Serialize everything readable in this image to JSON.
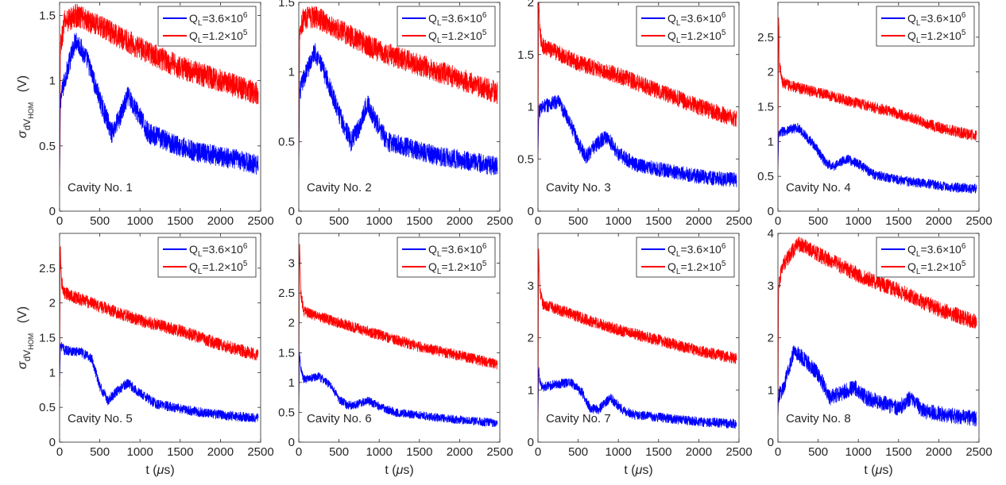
{
  "figure": {
    "ylabel": {
      "base": "σ",
      "sub1": "dV",
      "sub2": "HOM",
      "unit": "(V)"
    },
    "xlabel": {
      "prefix": "t (",
      "mu": "μ",
      "suffix": "s)"
    }
  },
  "legend": {
    "entries": [
      {
        "q": "Q",
        "sub": "L",
        "eq": "=3.6×10",
        "sup": "6",
        "color": "#0000ff"
      },
      {
        "q": "Q",
        "sub": "L",
        "eq": "=1.2×10",
        "sup": "5",
        "color": "#ff0000"
      }
    ]
  },
  "colors": {
    "series_low_q": "#0000ff",
    "series_high_q": "#ff0000",
    "axes": "#262626"
  },
  "chart_data": [
    {
      "type": "line",
      "title": "Cavity No. 1",
      "xlim": [
        0,
        2500
      ],
      "ylim": [
        0,
        1.6
      ],
      "xticks": [
        0,
        500,
        1000,
        1500,
        2000,
        2500
      ],
      "xticklabels": [
        "0",
        "500",
        "1000",
        "1500",
        "2000",
        "2500"
      ],
      "yticks": [
        0,
        0.5,
        1,
        1.5
      ],
      "yticklabels": [
        "0",
        "0.5",
        "1",
        "1.5"
      ],
      "series": [
        {
          "name": "QL=3.6×10^6",
          "color": "#0000ff",
          "noise": 0.08,
          "x": [
            0,
            10,
            60,
            200,
            350,
            500,
            650,
            750,
            850,
            950,
            1100,
            1400,
            1700,
            2000,
            2300,
            2470
          ],
          "y": [
            0.2,
            0.85,
            1.0,
            1.32,
            1.15,
            0.85,
            0.6,
            0.72,
            0.88,
            0.78,
            0.6,
            0.52,
            0.45,
            0.42,
            0.38,
            0.35
          ]
        },
        {
          "name": "QL=1.2×10^5",
          "color": "#ff0000",
          "noise": 0.09,
          "x": [
            0,
            10,
            60,
            200,
            500,
            1000,
            1500,
            2000,
            2470
          ],
          "y": [
            0.2,
            1.25,
            1.45,
            1.5,
            1.42,
            1.25,
            1.1,
            1.0,
            0.9
          ]
        }
      ]
    },
    {
      "type": "line",
      "title": "Cavity No. 2",
      "xlim": [
        0,
        2500
      ],
      "ylim": [
        0,
        1.5
      ],
      "xticks": [
        0,
        500,
        1000,
        1500,
        2000,
        2500
      ],
      "xticklabels": [
        "0",
        "500",
        "1000",
        "1500",
        "2000",
        "2500"
      ],
      "yticks": [
        0,
        0.5,
        1,
        1.5
      ],
      "yticklabels": [
        "0",
        "0.5",
        "1",
        "1.5"
      ],
      "series": [
        {
          "name": "QL=3.6×10^6",
          "color": "#0000ff",
          "noise": 0.07,
          "x": [
            0,
            10,
            60,
            200,
            350,
            500,
            650,
            750,
            850,
            950,
            1100,
            1400,
            1700,
            2000,
            2300,
            2470
          ],
          "y": [
            0.3,
            0.85,
            0.95,
            1.15,
            0.95,
            0.7,
            0.5,
            0.6,
            0.78,
            0.65,
            0.5,
            0.45,
            0.4,
            0.37,
            0.34,
            0.32
          ]
        },
        {
          "name": "QL=1.2×10^5",
          "color": "#ff0000",
          "noise": 0.08,
          "x": [
            0,
            10,
            60,
            200,
            500,
            1000,
            1500,
            2000,
            2470
          ],
          "y": [
            0.3,
            1.3,
            1.38,
            1.4,
            1.3,
            1.15,
            1.05,
            0.95,
            0.85
          ]
        }
      ]
    },
    {
      "type": "line",
      "title": "Cavity No. 3",
      "xlim": [
        0,
        2500
      ],
      "ylim": [
        0,
        2
      ],
      "xticks": [
        0,
        500,
        1000,
        1500,
        2000,
        2500
      ],
      "xticklabels": [
        "0",
        "500",
        "1000",
        "1500",
        "2000",
        "2500"
      ],
      "yticks": [
        0,
        0.5,
        1,
        1.5,
        2
      ],
      "yticklabels": [
        "0",
        "0.5",
        "1",
        "1.5",
        "2"
      ],
      "series": [
        {
          "name": "QL=3.6×10^6",
          "color": "#0000ff",
          "noise": 0.07,
          "x": [
            0,
            10,
            60,
            250,
            400,
            500,
            600,
            700,
            850,
            1000,
            1200,
            1500,
            1800,
            2100,
            2470
          ],
          "y": [
            0.5,
            0.95,
            1.0,
            1.05,
            0.85,
            0.65,
            0.52,
            0.62,
            0.72,
            0.55,
            0.45,
            0.4,
            0.36,
            0.32,
            0.3
          ]
        },
        {
          "name": "QL=1.2×10^5",
          "color": "#ff0000",
          "noise": 0.08,
          "x": [
            0,
            8,
            25,
            60,
            150,
            500,
            1000,
            1500,
            2000,
            2470
          ],
          "y": [
            0.5,
            2.0,
            1.7,
            1.58,
            1.55,
            1.42,
            1.3,
            1.15,
            1.0,
            0.88
          ]
        }
      ]
    },
    {
      "type": "line",
      "title": "Cavity No. 4",
      "xlim": [
        0,
        2500
      ],
      "ylim": [
        0,
        3
      ],
      "xticks": [
        0,
        500,
        1000,
        1500,
        2000,
        2500
      ],
      "xticklabels": [
        "0",
        "500",
        "1000",
        "1500",
        "2000",
        "2500"
      ],
      "yticks": [
        0,
        0.5,
        1,
        1.5,
        2,
        2.5
      ],
      "yticklabels": [
        "0",
        "0.5",
        "1",
        "1.5",
        "2",
        "2.5"
      ],
      "series": [
        {
          "name": "QL=3.6×10^6",
          "color": "#0000ff",
          "noise": 0.07,
          "x": [
            0,
            10,
            60,
            250,
            450,
            600,
            700,
            850,
            1000,
            1200,
            1500,
            1800,
            2100,
            2470
          ],
          "y": [
            0.6,
            1.1,
            1.15,
            1.2,
            0.95,
            0.68,
            0.65,
            0.75,
            0.68,
            0.52,
            0.45,
            0.4,
            0.35,
            0.32
          ]
        },
        {
          "name": "QL=1.2×10^5",
          "color": "#ff0000",
          "noise": 0.08,
          "x": [
            0,
            8,
            20,
            60,
            150,
            500,
            1000,
            1500,
            2000,
            2470
          ],
          "y": [
            0.6,
            2.9,
            2.1,
            1.85,
            1.8,
            1.7,
            1.55,
            1.4,
            1.2,
            1.08
          ]
        }
      ]
    },
    {
      "type": "line",
      "title": "Cavity No. 5",
      "xlim": [
        0,
        2500
      ],
      "ylim": [
        0,
        3
      ],
      "xticks": [
        0,
        500,
        1000,
        1500,
        2000,
        2500
      ],
      "xticklabels": [
        "0",
        "500",
        "1000",
        "1500",
        "2000",
        "2500"
      ],
      "yticks": [
        0,
        0.5,
        1,
        1.5,
        2,
        2.5
      ],
      "yticklabels": [
        "0",
        "0.5",
        "1",
        "1.5",
        "2",
        "2.5"
      ],
      "series": [
        {
          "name": "QL=3.6×10^6",
          "color": "#0000ff",
          "noise": 0.07,
          "x": [
            0,
            10,
            60,
            250,
            400,
            500,
            600,
            700,
            850,
            1000,
            1200,
            1500,
            1800,
            2100,
            2470
          ],
          "y": [
            0.8,
            1.4,
            1.32,
            1.3,
            1.2,
            0.8,
            0.6,
            0.72,
            0.85,
            0.7,
            0.55,
            0.48,
            0.42,
            0.38,
            0.35
          ]
        },
        {
          "name": "QL=1.2×10^5",
          "color": "#ff0000",
          "noise": 0.09,
          "x": [
            0,
            8,
            25,
            60,
            150,
            500,
            1000,
            1500,
            2000,
            2470
          ],
          "y": [
            0.8,
            2.8,
            2.3,
            2.15,
            2.1,
            1.95,
            1.75,
            1.6,
            1.4,
            1.25
          ]
        }
      ]
    },
    {
      "type": "line",
      "title": "Cavity No. 6",
      "xlim": [
        0,
        2500
      ],
      "ylim": [
        0,
        3.5
      ],
      "xticks": [
        0,
        500,
        1000,
        1500,
        2000,
        2500
      ],
      "xticklabels": [
        "0",
        "500",
        "1000",
        "1500",
        "2000",
        "2500"
      ],
      "yticks": [
        0,
        0.5,
        1,
        1.5,
        2,
        2.5,
        3
      ],
      "yticklabels": [
        "0",
        "0.5",
        "1",
        "1.5",
        "2",
        "2.5",
        "3"
      ],
      "series": [
        {
          "name": "QL=3.6×10^6",
          "color": "#0000ff",
          "noise": 0.07,
          "x": [
            0,
            8,
            30,
            60,
            250,
            400,
            500,
            600,
            700,
            850,
            1000,
            1200,
            1500,
            1800,
            2100,
            2470
          ],
          "y": [
            0.5,
            1.45,
            1.2,
            1.05,
            1.1,
            0.95,
            0.72,
            0.62,
            0.62,
            0.7,
            0.6,
            0.5,
            0.45,
            0.4,
            0.36,
            0.32
          ]
        },
        {
          "name": "QL=1.2×10^5",
          "color": "#ff0000",
          "noise": 0.09,
          "x": [
            0,
            8,
            25,
            60,
            150,
            500,
            1000,
            1500,
            2000,
            2470
          ],
          "y": [
            0.5,
            3.4,
            2.5,
            2.2,
            2.15,
            2.0,
            1.8,
            1.6,
            1.45,
            1.3
          ]
        }
      ]
    },
    {
      "type": "line",
      "title": "Cavity No. 7",
      "xlim": [
        0,
        2500
      ],
      "ylim": [
        0,
        4
      ],
      "xticks": [
        0,
        500,
        1000,
        1500,
        2000,
        2500
      ],
      "xticklabels": [
        "0",
        "500",
        "1000",
        "1500",
        "2000",
        "2500"
      ],
      "yticks": [
        0,
        1,
        2,
        3
      ],
      "yticklabels": [
        "0",
        "1",
        "2",
        "3"
      ],
      "series": [
        {
          "name": "QL=3.6×10^6",
          "color": "#0000ff",
          "noise": 0.09,
          "x": [
            0,
            8,
            30,
            60,
            200,
            400,
            550,
            650,
            750,
            900,
            1050,
            1200,
            1500,
            1800,
            2100,
            2470
          ],
          "y": [
            0.4,
            1.4,
            1.1,
            1.05,
            1.1,
            1.15,
            0.95,
            0.65,
            0.62,
            0.85,
            0.62,
            0.52,
            0.48,
            0.42,
            0.38,
            0.35
          ]
        },
        {
          "name": "QL=1.2×10^5",
          "color": "#ff0000",
          "noise": 0.11,
          "x": [
            0,
            8,
            25,
            60,
            150,
            500,
            1000,
            1500,
            2000,
            2470
          ],
          "y": [
            0.4,
            3.7,
            2.9,
            2.65,
            2.6,
            2.4,
            2.15,
            1.95,
            1.75,
            1.6
          ]
        }
      ]
    },
    {
      "type": "line",
      "title": "Cavity No. 8",
      "xlim": [
        0,
        2500
      ],
      "ylim": [
        0,
        4
      ],
      "xticks": [
        0,
        500,
        1000,
        1500,
        2000,
        2500
      ],
      "xticklabels": [
        "0",
        "500",
        "1000",
        "1500",
        "2000",
        "2500"
      ],
      "yticks": [
        0,
        1,
        2,
        3,
        4
      ],
      "yticklabels": [
        "0",
        "1",
        "2",
        "3",
        "4"
      ],
      "series": [
        {
          "name": "QL=3.6×10^6",
          "color": "#0000ff",
          "noise": 0.15,
          "x": [
            0,
            8,
            60,
            200,
            350,
            500,
            650,
            800,
            950,
            1100,
            1300,
            1500,
            1650,
            1800,
            2000,
            2200,
            2470
          ],
          "y": [
            0.5,
            0.9,
            1.0,
            1.75,
            1.55,
            1.3,
            0.85,
            0.95,
            1.05,
            0.85,
            0.75,
            0.65,
            0.85,
            0.6,
            0.55,
            0.5,
            0.45
          ]
        },
        {
          "name": "QL=1.2×10^5",
          "color": "#ff0000",
          "noise": 0.15,
          "x": [
            0,
            8,
            60,
            250,
            500,
            1000,
            1500,
            2000,
            2470
          ],
          "y": [
            0.5,
            3.0,
            3.4,
            3.8,
            3.6,
            3.2,
            2.9,
            2.55,
            2.3
          ]
        }
      ]
    }
  ]
}
